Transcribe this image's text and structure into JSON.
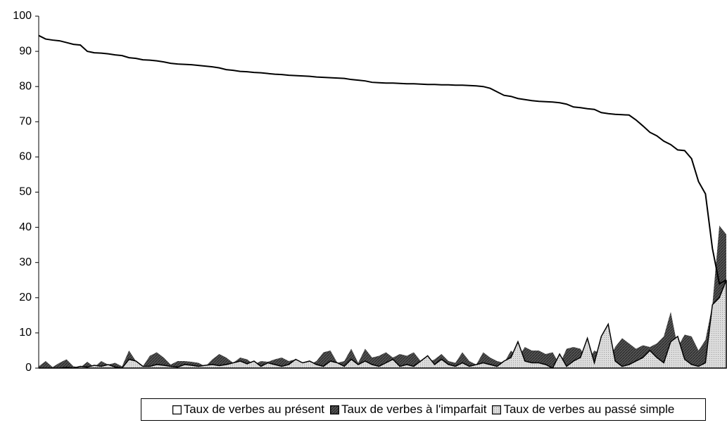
{
  "chart_data": {
    "type": "area",
    "ylim": [
      0,
      100
    ],
    "yticks": [
      0,
      10,
      20,
      30,
      40,
      50,
      60,
      70,
      80,
      90,
      100
    ],
    "legend": "bottom",
    "series": [
      {
        "name": "Taux de verbes au présent",
        "color": "#ffffff",
        "style": "line",
        "values": [
          94.5,
          93.5,
          93.2,
          93,
          92.5,
          92,
          91.8,
          90,
          89.6,
          89.5,
          89.3,
          89,
          88.8,
          88.2,
          88,
          87.6,
          87.5,
          87.3,
          87,
          86.6,
          86.4,
          86.3,
          86.2,
          86,
          85.8,
          85.6,
          85.3,
          84.8,
          84.6,
          84.3,
          84.2,
          84,
          83.9,
          83.7,
          83.5,
          83.4,
          83.2,
          83.1,
          83,
          82.9,
          82.7,
          82.6,
          82.5,
          82.4,
          82.3,
          82,
          81.8,
          81.6,
          81.2,
          81.1,
          81,
          81,
          80.9,
          80.8,
          80.8,
          80.7,
          80.6,
          80.6,
          80.5,
          80.5,
          80.4,
          80.4,
          80.3,
          80.2,
          80,
          79.5,
          78.5,
          77.5,
          77.2,
          76.6,
          76.3,
          76,
          75.8,
          75.7,
          75.6,
          75.4,
          75,
          74.2,
          74,
          73.7,
          73.5,
          72.6,
          72.3,
          72.1,
          72,
          71.9,
          70.5,
          68.8,
          67,
          66,
          64.5,
          63.5,
          62,
          61.8,
          59.5,
          53,
          49.5,
          34,
          24,
          25
        ]
      },
      {
        "name": "Taux de verbes à l'imparfait",
        "color": "#555555",
        "style": "hatch",
        "values": [
          0.5,
          2,
          0.3,
          1.5,
          2.5,
          0.5,
          0.2,
          1.8,
          0.3,
          2,
          1,
          1.5,
          0.5,
          5,
          2,
          0.5,
          3.5,
          4.5,
          3,
          1,
          2,
          2,
          1.8,
          1.5,
          0.5,
          2.5,
          4,
          3,
          1.5,
          3,
          2.5,
          1,
          2,
          1.8,
          2.5,
          3,
          2,
          2.5,
          1.5,
          1,
          2,
          4.5,
          5,
          1.5,
          2,
          5.5,
          1.5,
          5.5,
          3,
          3.5,
          4.5,
          3,
          4,
          3.5,
          4.5,
          2,
          1.5,
          2.5,
          4,
          2,
          1.5,
          4.5,
          2,
          1,
          4.5,
          3,
          2,
          1.5,
          5,
          3,
          6,
          5,
          5,
          4,
          4.5,
          1,
          5.5,
          6,
          5.5,
          2,
          5,
          4,
          2,
          6,
          8.5,
          7,
          5.5,
          6.5,
          6,
          7,
          9,
          16,
          6,
          9.5,
          9,
          5,
          8,
          18,
          40.5,
          38
        ]
      },
      {
        "name": "Taux de verbes au passé simple",
        "color": "#dddddd",
        "style": "dots",
        "values": [
          0,
          0,
          0,
          0,
          0.2,
          0,
          0.5,
          0.3,
          0.8,
          0.5,
          1,
          0.3,
          0,
          2.5,
          2,
          0.5,
          0.5,
          1,
          0.8,
          0.5,
          0.3,
          1,
          0.8,
          0.5,
          0.8,
          1,
          0.7,
          1,
          1.5,
          2,
          1.2,
          2,
          0.5,
          1.5,
          1,
          0.5,
          1,
          2.5,
          1.5,
          2,
          1,
          0.5,
          2,
          1.5,
          0.5,
          2.5,
          1,
          2,
          1,
          0.5,
          1.5,
          2.5,
          0.5,
          1,
          0.5,
          2,
          3.5,
          1,
          2.5,
          1,
          0.5,
          1.5,
          0.5,
          1,
          1.5,
          1,
          0.5,
          2,
          3,
          7.5,
          2,
          1.5,
          1.5,
          1,
          0,
          4,
          0.5,
          2,
          3,
          8.5,
          1.5,
          9,
          12.5,
          2,
          0.5,
          1,
          2,
          3,
          5,
          3,
          1.5,
          7.5,
          9,
          2.5,
          1,
          0.5,
          1.5,
          18,
          20,
          25
        ]
      }
    ]
  }
}
